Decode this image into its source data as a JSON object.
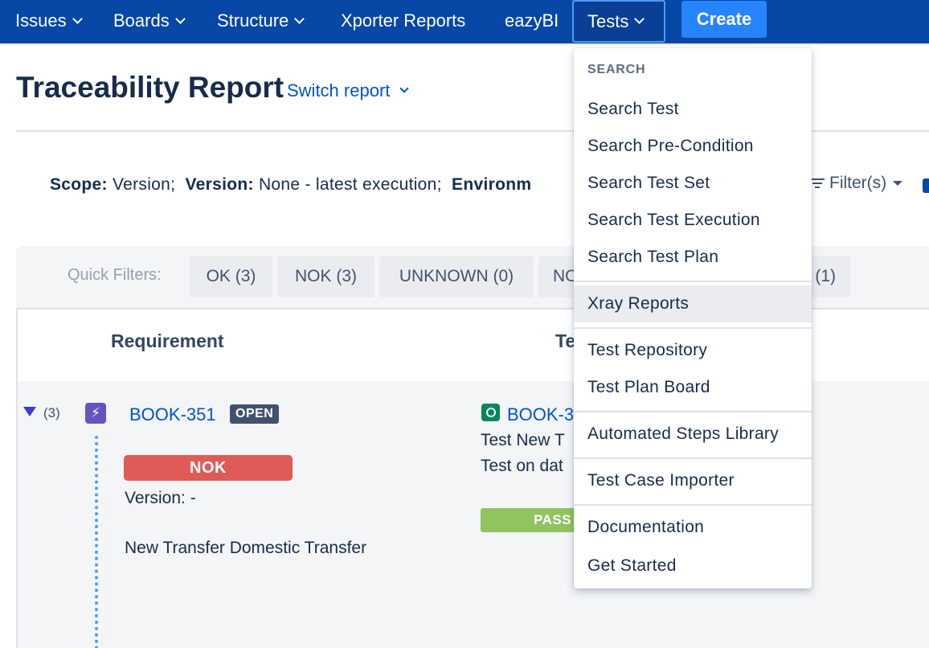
{
  "topnav": {
    "items": [
      {
        "label": "Issues"
      },
      {
        "label": "Boards"
      },
      {
        "label": "Structure"
      },
      {
        "label": "Xporter Reports"
      },
      {
        "label": "eazyBI"
      },
      {
        "label": "Tests"
      }
    ],
    "create_label": "Create"
  },
  "header": {
    "title": "Traceability Report",
    "switch_report": "Switch report"
  },
  "scope": {
    "scope_label": "Scope:",
    "scope_value": "Version;",
    "version_label": "Version:",
    "version_value": "None - latest execution;",
    "environment_label": "Environm"
  },
  "filters_label": "Filter(s)",
  "quick_filters": {
    "label": "Quick Filters:",
    "chips": [
      {
        "label": "OK (3)"
      },
      {
        "label": "NOK (3)"
      },
      {
        "label": "UNKNOWN (0)"
      },
      {
        "label": "NO"
      },
      {
        "label": "(1)"
      }
    ]
  },
  "table": {
    "headers": {
      "requirement": "Requirement",
      "tests": "Te"
    },
    "row": {
      "child_count": "(3)",
      "story_icon_glyph": "⚡",
      "key": "BOOK-351",
      "status": "OPEN",
      "coverage": "NOK",
      "version": "Version: -",
      "summary": "New Transfer Domestic Transfer",
      "test": {
        "key": "BOOK-3",
        "line1": "Test New T",
        "line2": "Test on dat",
        "status": "PASS"
      }
    }
  },
  "dropdown": {
    "heading": "SEARCH",
    "items": [
      {
        "label": "Search Test"
      },
      {
        "label": "Search Pre-Condition"
      },
      {
        "label": "Search Test Set"
      },
      {
        "label": "Search Test Execution"
      },
      {
        "label": "Search Test Plan"
      },
      {
        "label": "Xray Reports"
      },
      {
        "label": "Test Repository"
      },
      {
        "label": "Test Plan Board"
      },
      {
        "label": "Automated Steps Library"
      },
      {
        "label": "Test Case Importer"
      },
      {
        "label": "Documentation"
      },
      {
        "label": "Get Started"
      }
    ]
  },
  "colors": {
    "nav_bg": "#0747a6",
    "create_bg": "#2684ff",
    "link": "#0052cc",
    "nok": "#de5b57",
    "pass": "#8fc45e",
    "story_icon": "#6554c0",
    "test_icon": "#00875a"
  }
}
